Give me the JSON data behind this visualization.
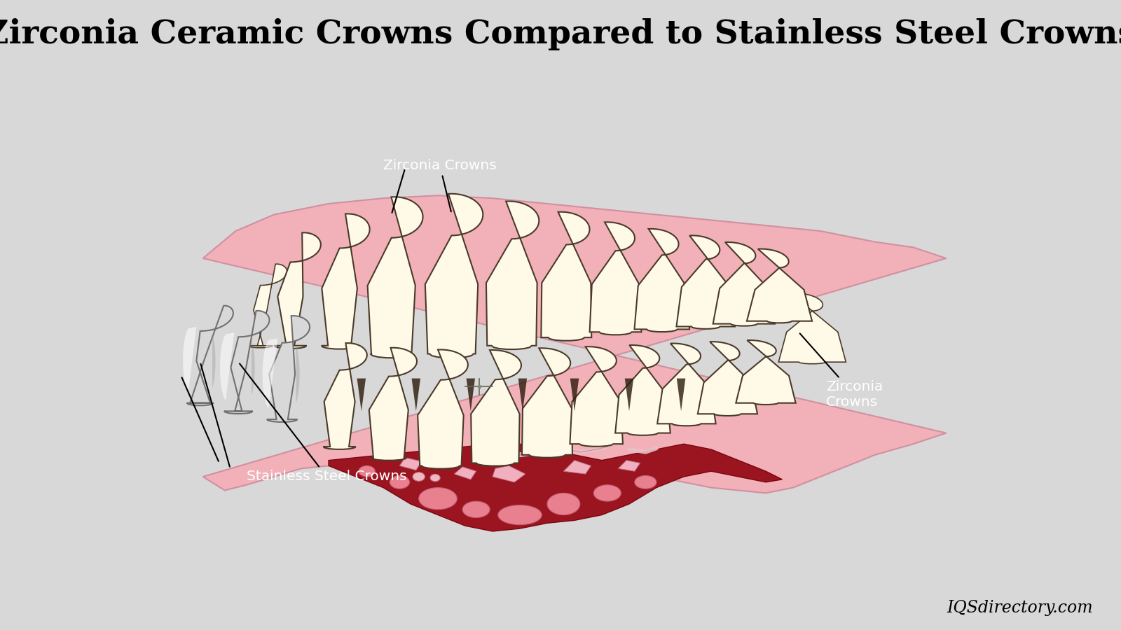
{
  "title": "Zirconia Ceramic Crowns Compared to Stainless Steel Crowns",
  "title_fontsize": 34,
  "title_font": "DejaVu Serif",
  "bg_color": "#d8d8d8",
  "panel_bg": "#8B1010",
  "gum_color": "#F2B0B8",
  "gum_lower_color": "#C04050",
  "gum_edge": "#C09090",
  "tooth_fill": "#FFFAE8",
  "tooth_edge": "#4a3a2a",
  "steel_fill": "#D8D8D8",
  "steel_highlight": "#F5F5F5",
  "steel_shadow": "#909090",
  "steel_edge": "#707070",
  "ann_color": "#000000",
  "label_color": "#FFFFFF",
  "watermark": "IQSdirectory.com",
  "label_zirconia_top": "Zirconia Crowns",
  "label_zirconia_right": "Zirconia\nCrowns",
  "label_steel": "Stainless Steel Crowns"
}
